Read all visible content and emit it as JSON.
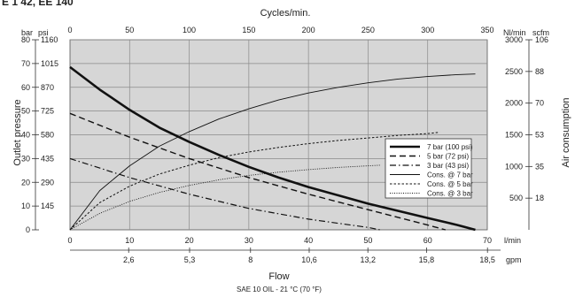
{
  "header_fragment": "E 1 42, EE 140",
  "chart_data": {
    "type": "line",
    "plot_bg": "#d6d6d6",
    "x_primary": {
      "label": "Flow",
      "unit": "l/min",
      "range": [
        0,
        70
      ],
      "ticks": [
        "0",
        "10",
        "20",
        "30",
        "40",
        "50",
        "60",
        "70"
      ]
    },
    "x_secondary": {
      "unit": "gpm",
      "ticks": [
        "2,6",
        "5,3",
        "8",
        "10,6",
        "13,2",
        "15,8",
        "18,5"
      ]
    },
    "x_top": {
      "label": "Cycles/min.",
      "range": [
        0,
        350
      ],
      "ticks": [
        "0",
        "50",
        "100",
        "150",
        "200",
        "250",
        "300",
        "350"
      ]
    },
    "y_left": {
      "label": "Outlet pressure",
      "unit": "bar",
      "range": [
        0,
        80
      ],
      "ticks": [
        "0",
        "10",
        "20",
        "30",
        "40",
        "50",
        "60",
        "70",
        "80"
      ]
    },
    "y_left_psi": {
      "unit": "psi",
      "ticks": [
        "145",
        "290",
        "435",
        "580",
        "725",
        "870",
        "1015",
        "1160"
      ]
    },
    "y_right": {
      "label": "Air consumption",
      "unit": "Nl/min",
      "range": [
        0,
        3000
      ],
      "ticks": [
        "500",
        "1000",
        "1500",
        "2000",
        "2500",
        "3000"
      ]
    },
    "y_right_scfm": {
      "unit": "scfm",
      "ticks": [
        "18",
        "35",
        "53",
        "70",
        "88",
        "106"
      ]
    },
    "footnote": "SAE 10 OIL - 21 °C (70 °F)",
    "legend_position": "right",
    "series": [
      {
        "name": "7 bar (100 psi)",
        "axis": "left",
        "style": "thick",
        "x": [
          0,
          5,
          10,
          15,
          20,
          25,
          30,
          35,
          40,
          45,
          50,
          55,
          60,
          65,
          68
        ],
        "y": [
          68.5,
          59,
          50.5,
          43,
          37,
          31.5,
          26.5,
          22,
          18,
          14.5,
          11,
          8,
          5,
          2,
          0
        ]
      },
      {
        "name": "5 bar (72 psi)",
        "axis": "left",
        "style": "dashed",
        "x": [
          0,
          10,
          20,
          30,
          40,
          50,
          60,
          63
        ],
        "y": [
          49,
          39,
          30,
          22,
          15,
          8.5,
          2,
          0
        ]
      },
      {
        "name": "3 bar (43 psi)",
        "axis": "left",
        "style": "dashdot",
        "x": [
          0,
          10,
          20,
          30,
          40,
          50,
          52
        ],
        "y": [
          30,
          22,
          15,
          9,
          4.5,
          1,
          0
        ]
      },
      {
        "name": "Cons. @ 7 bar",
        "axis": "right",
        "style": "thin",
        "x": [
          0,
          5,
          10,
          15,
          20,
          25,
          30,
          35,
          40,
          45,
          50,
          55,
          60,
          65,
          68
        ],
        "y": [
          0,
          620,
          1010,
          1320,
          1550,
          1750,
          1910,
          2050,
          2160,
          2250,
          2320,
          2380,
          2420,
          2450,
          2460
        ]
      },
      {
        "name": "Cons. @ 5 bar",
        "axis": "right",
        "style": "dotted",
        "x": [
          0,
          5,
          10,
          15,
          20,
          25,
          30,
          35,
          40,
          45,
          50,
          55,
          60,
          62
        ],
        "y": [
          0,
          430,
          690,
          880,
          1020,
          1140,
          1230,
          1300,
          1360,
          1410,
          1450,
          1490,
          1520,
          1540
        ]
      },
      {
        "name": "Cons. @ 3 bar",
        "axis": "right",
        "style": "finedot",
        "x": [
          0,
          5,
          10,
          15,
          20,
          25,
          30,
          35,
          40,
          45,
          50,
          52
        ],
        "y": [
          0,
          260,
          450,
          590,
          700,
          790,
          860,
          910,
          950,
          985,
          1010,
          1020
        ]
      }
    ]
  }
}
